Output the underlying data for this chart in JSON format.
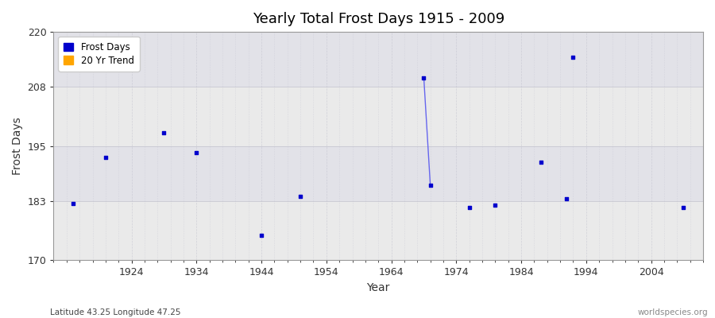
{
  "title": "Yearly Total Frost Days 1915 - 2009",
  "xlabel": "Year",
  "ylabel": "Frost Days",
  "xlim": [
    1912,
    2012
  ],
  "ylim": [
    170,
    220
  ],
  "yticks": [
    170,
    183,
    195,
    208,
    220
  ],
  "xticks": [
    1924,
    1934,
    1944,
    1954,
    1964,
    1974,
    1984,
    1994,
    2004
  ],
  "background_color": "#f0f0f0",
  "plot_bg_color": "#eaeaea",
  "band_color_light": "#e8e8e8",
  "band_color_mid": "#dcdcdc",
  "grid_color": "#c8c8d0",
  "dot_color": "#0000cc",
  "line_color": "#6666ee",
  "data_points": [
    [
      1915,
      182.5
    ],
    [
      1920,
      192.5
    ],
    [
      1929,
      198.0
    ],
    [
      1934,
      193.5
    ],
    [
      1944,
      175.5
    ],
    [
      1950,
      184.0
    ],
    [
      1969,
      210.0
    ],
    [
      1970,
      186.5
    ],
    [
      1976,
      181.5
    ],
    [
      1980,
      182.0
    ],
    [
      1987,
      191.5
    ],
    [
      1991,
      183.5
    ],
    [
      1992,
      214.5
    ],
    [
      2009,
      181.5
    ]
  ],
  "line_segment": [
    [
      1969,
      210.0
    ],
    [
      1970,
      186.5
    ]
  ],
  "subtitle_left": "Latitude 43.25 Longitude 47.25",
  "subtitle_right": "worldspecies.org",
  "legend_entries": [
    "Frost Days",
    "20 Yr Trend"
  ],
  "legend_colors": [
    "#0000cc",
    "#ffa500"
  ]
}
